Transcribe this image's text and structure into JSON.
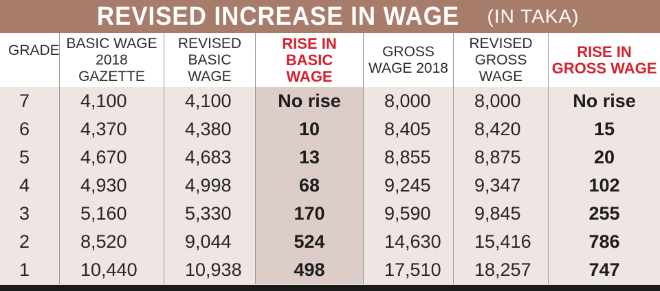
{
  "title": {
    "main": "REVISED INCREASE IN WAGE",
    "sub": "(IN TAKA)"
  },
  "columns": [
    "GRADE",
    "BASIC WAGE\n2018 GAZETTE",
    "REVISED\nBASIC WAGE",
    "RISE IN BASIC\nWAGE",
    "GROSS\nWAGE 2018",
    "REVISED\nGROSS WAGE",
    "RISE IN\nGROSS WAGE"
  ],
  "rows": [
    [
      "7",
      "4,100",
      "4,100",
      "No rise",
      "8,000",
      "8,000",
      "No rise"
    ],
    [
      "6",
      "4,370",
      "4,380",
      "10",
      "8,405",
      "8,420",
      "15"
    ],
    [
      "5",
      "4,670",
      "4,683",
      "13",
      "8,855",
      "8,875",
      "20"
    ],
    [
      "4",
      "4,930",
      "4,998",
      "68",
      "9,245",
      "9,347",
      "102"
    ],
    [
      "3",
      "5,160",
      "5,330",
      "170",
      "9,590",
      "9,845",
      "255"
    ],
    [
      "2",
      "8,520",
      "9,044",
      "524",
      "14,630",
      "15,416",
      "786"
    ],
    [
      "1",
      "10,440",
      "10,938",
      "498",
      "17,510",
      "18,257",
      "747"
    ]
  ],
  "colors": {
    "title_bg": "#a87c6a",
    "highlight_text": "#d6202d",
    "body_bg": "#efe5e2",
    "highlight_col_bg": "#ddcdc8"
  }
}
